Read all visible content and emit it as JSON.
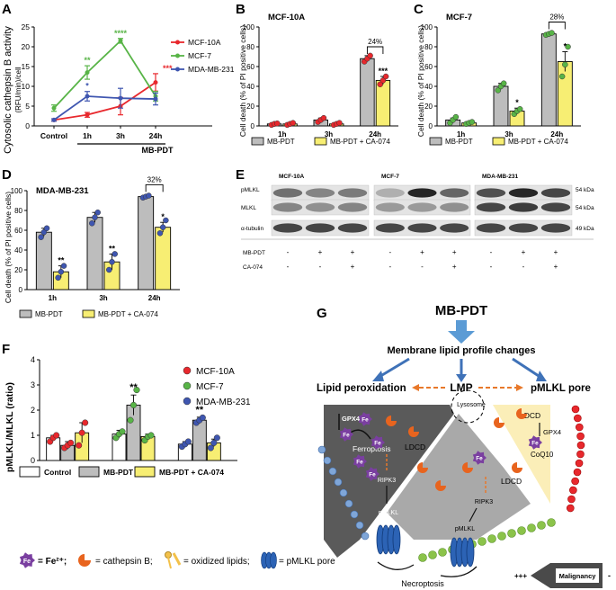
{
  "figure": {
    "panel_labels": [
      "A",
      "B",
      "C",
      "D",
      "E",
      "F",
      "G"
    ]
  },
  "chart_data": [
    {
      "panel": "A",
      "type": "line",
      "ylabel": "Cytosolic cathepsin B activity",
      "ylabel_unit": "(RFU/min)/cell",
      "x_categories": [
        "Control",
        "1h",
        "3h",
        "24h"
      ],
      "group_label": "MB-PDT",
      "ylim": [
        0,
        25
      ],
      "yticks": [
        0,
        5,
        10,
        15,
        20,
        25
      ],
      "legend_position": "top-right",
      "series": [
        {
          "name": "MCF-10A",
          "color": "#e8282d",
          "values": [
            1.5,
            2.8,
            5.0,
            11.0
          ],
          "errors": [
            0.3,
            0.6,
            2.2,
            2.2
          ],
          "sig": [
            "",
            "",
            "",
            "***"
          ]
        },
        {
          "name": "MCF-7",
          "color": "#58b447",
          "values": [
            4.5,
            13.5,
            21.5,
            7.5
          ],
          "errors": [
            0.8,
            1.7,
            0.6,
            1.2
          ],
          "sig": [
            "",
            "**",
            "****",
            ""
          ]
        },
        {
          "name": "MDA-MB-231",
          "color": "#3f56b0",
          "values": [
            1.5,
            7.5,
            7.0,
            6.8
          ],
          "errors": [
            0.3,
            1.2,
            2.5,
            1.5
          ],
          "sig": [
            "",
            "*",
            "",
            ""
          ]
        }
      ]
    },
    {
      "panel": "B",
      "type": "bar",
      "title": "MCF-10A",
      "ylabel": "Cell death (% of PI positive cells)",
      "categories": [
        "1h",
        "3h",
        "24h"
      ],
      "ylim": [
        0,
        100
      ],
      "yticks": [
        0,
        20,
        40,
        60,
        80,
        100
      ],
      "series": [
        {
          "name": "MB-PDT",
          "color": "#bdbdbd",
          "values": [
            2,
            6,
            68
          ],
          "errors": [
            1,
            2,
            3
          ],
          "points": [
            [
              1,
              2,
              2.5
            ],
            [
              4,
              6,
              8
            ],
            [
              65,
              68,
              71
            ]
          ]
        },
        {
          "name": "MB-PDT + CA-074",
          "color": "#f7ee73",
          "values": [
            2,
            2,
            46
          ],
          "errors": [
            1,
            1,
            4
          ],
          "points": [
            [
              1,
              2,
              3
            ],
            [
              1,
              2,
              3
            ],
            [
              42,
              46,
              50
            ]
          ]
        }
      ],
      "sig": [
        "",
        "",
        "***"
      ],
      "bracket": {
        "category": "24h",
        "label": "24%"
      }
    },
    {
      "panel": "C",
      "type": "bar",
      "title": "MCF-7",
      "ylabel": "Cell death (% of PI positive cells)",
      "categories": [
        "1h",
        "3h",
        "24h"
      ],
      "ylim": [
        0,
        100
      ],
      "yticks": [
        0,
        20,
        40,
        60,
        80,
        100
      ],
      "series": [
        {
          "name": "MB-PDT",
          "color": "#bdbdbd",
          "values": [
            6,
            40,
            93
          ],
          "errors": [
            2,
            3,
            1
          ],
          "points": [
            [
              3,
              6,
              9
            ],
            [
              36,
              40,
              43
            ],
            [
              92,
              93,
              94
            ]
          ]
        },
        {
          "name": "MB-PDT + CA-074",
          "color": "#f7ee73",
          "values": [
            3,
            15,
            65
          ],
          "errors": [
            1,
            3,
            10
          ],
          "points": [
            [
              2,
              3,
              4
            ],
            [
              12,
              15,
              17
            ],
            [
              50,
              62,
              80
            ]
          ]
        }
      ],
      "sig": [
        "",
        "*",
        "*"
      ],
      "bracket": {
        "category": "24h",
        "label": "28%"
      }
    },
    {
      "panel": "D",
      "type": "bar",
      "title": "MDA-MB-231",
      "ylabel": "Cell death (% of PI positive cells)",
      "categories": [
        "1h",
        "3h",
        "24h"
      ],
      "ylim": [
        0,
        100
      ],
      "yticks": [
        0,
        20,
        40,
        60,
        80,
        100
      ],
      "series": [
        {
          "name": "MB-PDT",
          "color": "#bdbdbd",
          "values": [
            58,
            73,
            94
          ],
          "errors": [
            4,
            5,
            1
          ],
          "points": [
            [
              53,
              58,
              62
            ],
            [
              67,
              73,
              78
            ],
            [
              93,
              94,
              95
            ]
          ]
        },
        {
          "name": "MB-PDT + CA-074",
          "color": "#f7ee73",
          "values": [
            18,
            28,
            63
          ],
          "errors": [
            6,
            8,
            5
          ],
          "points": [
            [
              12,
              18,
              24
            ],
            [
              20,
              28,
              36
            ],
            [
              57,
              63,
              70
            ]
          ]
        }
      ],
      "sig": [
        "**",
        "**",
        "*"
      ],
      "bracket": {
        "category": "24h",
        "label": "32%"
      }
    },
    {
      "panel": "F",
      "type": "bar",
      "ylabel": "pMLKL/MLKL (ratio)",
      "categories": [
        "MCF-10A",
        "MCF-7",
        "MDA-MB-231"
      ],
      "ylim": [
        0,
        4
      ],
      "yticks": [
        0,
        1,
        2,
        3,
        4
      ],
      "series": [
        {
          "name": "Control",
          "color": "#ffffff",
          "values": [
            0.9,
            1.05,
            0.65
          ],
          "errors": [
            0.1,
            0.15,
            0.1
          ]
        },
        {
          "name": "MB-PDT",
          "color": "#bdbdbd",
          "values": [
            0.6,
            2.2,
            1.6
          ],
          "errors": [
            0.15,
            0.4,
            0.12
          ]
        },
        {
          "name": "MB-PDT + CA-074",
          "color": "#f7ee73",
          "values": [
            1.1,
            0.95,
            0.7
          ],
          "errors": [
            0.4,
            0.1,
            0.15
          ]
        }
      ],
      "points": [
        [
          [
            0.75,
            0.9,
            1.0
          ],
          [
            0.5,
            0.6,
            0.7
          ],
          [
            0.6,
            1.1,
            1.5
          ]
        ],
        [
          [
            0.9,
            1.05,
            1.15
          ],
          [
            1.6,
            2.2,
            2.8
          ],
          [
            0.8,
            0.95,
            1.0
          ]
        ],
        [
          [
            0.55,
            0.65,
            0.75
          ],
          [
            1.5,
            1.6,
            1.7
          ],
          [
            0.5,
            0.7,
            0.9
          ]
        ]
      ],
      "sig": [
        [
          "",
          "",
          ""
        ],
        [
          "",
          "**",
          ""
        ],
        [
          "",
          "**",
          ""
        ]
      ],
      "legend": [
        {
          "name": "MCF-10A",
          "color": "#e8282d"
        },
        {
          "name": "MCF-7",
          "color": "#58b447"
        },
        {
          "name": "MDA-MB-231",
          "color": "#3f56b0"
        }
      ]
    }
  ],
  "blot": {
    "cell_lines": [
      "MCF-10A",
      "MCF-7",
      "MDA-MB-231"
    ],
    "rows": [
      "pMLKL",
      "MLKL",
      "α-tubulin"
    ],
    "kda": [
      "54 kDa",
      "54 kDa",
      "49 kDa"
    ],
    "treatments": [
      {
        "name": "MB-PDT",
        "signs": [
          "-",
          "+",
          "+",
          "-",
          "+",
          "+",
          "-",
          "+",
          "+"
        ]
      },
      {
        "name": "CA-074",
        "signs": [
          "-",
          "-",
          "+",
          "-",
          "-",
          "+",
          "-",
          "-",
          "+"
        ]
      }
    ]
  },
  "scheme": {
    "mbpdt": "MB-PDT",
    "membrane": "Membrane lipid profile changes",
    "lipid": "Lipid peroxidation",
    "lmp": "LMP",
    "pmlkl_pore": "pMLKL pore",
    "lysosome": "Lysosome",
    "gpx4_left": "GPX4",
    "ferroptosis": "Ferroptosis",
    "ldcd_left": "LDCD",
    "ripk3_left": "RIPK3",
    "pmlkl_left": "pMLKL",
    "ldcd_right": "LDCD",
    "gpx4_right": "GPX4",
    "coq10": "CoQ10",
    "ldcd_mid": "LDCD",
    "ripk3_mid": "RIPK3",
    "pmlkl_mid": "pMLKL",
    "necroptosis": "Necroptosis",
    "malignancy": "Malignancy",
    "plus": "+++",
    "minus": "-",
    "fe": "Fe"
  },
  "key": {
    "fe_label": "= Fe²⁺;",
    "cathepsin": "= cathepsin B;",
    "lipids": "= oxidized lipids;",
    "pore": "= pMLKL pore"
  }
}
